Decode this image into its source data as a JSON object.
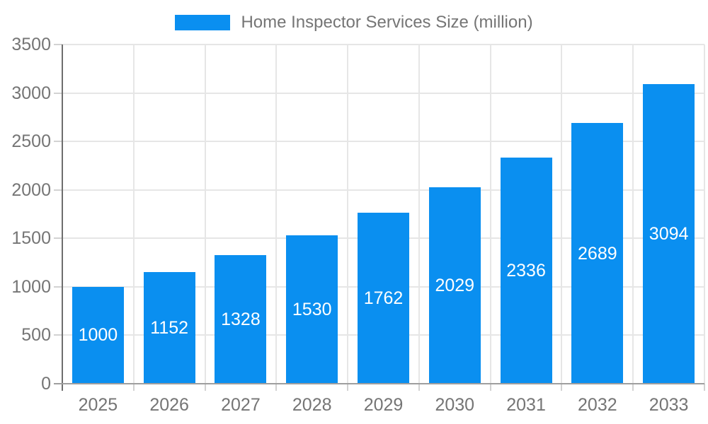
{
  "legend": {
    "label": "Home Inspector Services Size (million)"
  },
  "chart_data": {
    "type": "bar",
    "title": "Home Inspector Services Size (million)",
    "categories": [
      "2025",
      "2026",
      "2027",
      "2028",
      "2029",
      "2030",
      "2031",
      "2032",
      "2033"
    ],
    "values": [
      1000,
      1152,
      1328,
      1530,
      1762,
      2029,
      2336,
      2689,
      3094
    ],
    "data_labels": [
      "1000",
      "1152",
      "1328",
      "1530",
      "1762",
      "2029",
      "2336",
      "2689",
      "3094"
    ],
    "xlabel": "",
    "ylabel": "",
    "ylim": [
      0,
      3500
    ],
    "ytick_step": 500,
    "ytick_labels": [
      "0",
      "500",
      "1000",
      "1500",
      "2000",
      "2500",
      "3000",
      "3500"
    ],
    "grid": true,
    "legend_position": "top",
    "colors": {
      "bar": "#0a8ff0",
      "bar_label": "#ffffff",
      "axis_text": "#757575",
      "gridline": "#e6e6e6",
      "axis_line": "#6e6e6e",
      "baseline": "#9e9e9e",
      "tick": "#d2d2d2"
    }
  }
}
